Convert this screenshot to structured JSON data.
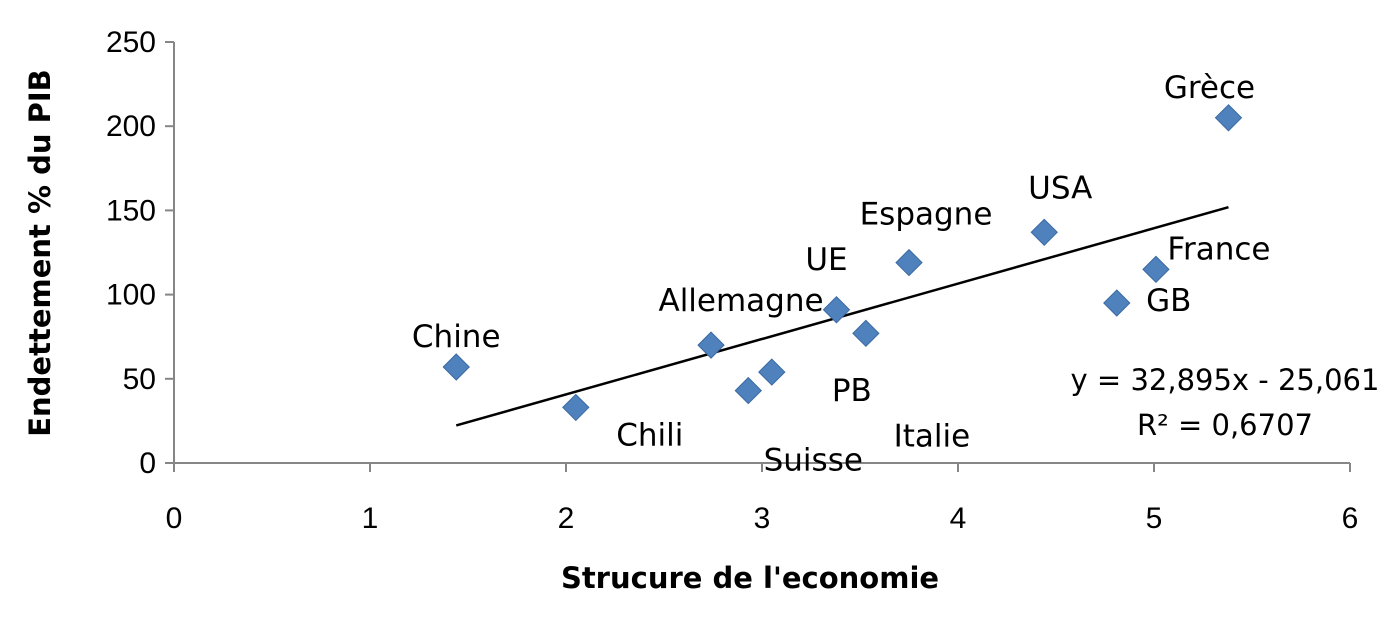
{
  "chart_data": {
    "type": "scatter",
    "xlabel": "Strucure de l'economie",
    "ylabel": "Endettement  % du PIB",
    "xlim": [
      0,
      6
    ],
    "ylim": [
      0,
      250
    ],
    "xticks": [
      "0",
      "1",
      "2",
      "3",
      "4",
      "5",
      "6"
    ],
    "yticks": [
      "0",
      "50",
      "100",
      "150",
      "200",
      "250"
    ],
    "grid": false,
    "marker_color": "#4f81bd",
    "points": [
      {
        "label": "Chine",
        "x": 1.44,
        "y": 57
      },
      {
        "label": "Chili",
        "x": 2.05,
        "y": 33
      },
      {
        "label": "Allemagne",
        "x": 2.74,
        "y": 70
      },
      {
        "label": "Suisse",
        "x": 2.93,
        "y": 43
      },
      {
        "label": "PB",
        "x": 3.05,
        "y": 54
      },
      {
        "label": "UE",
        "x": 3.38,
        "y": 91
      },
      {
        "label": "Italie",
        "x": 3.53,
        "y": 77
      },
      {
        "label": "Espagne",
        "x": 3.75,
        "y": 119
      },
      {
        "label": "USA",
        "x": 4.44,
        "y": 137
      },
      {
        "label": "GB",
        "x": 4.81,
        "y": 95
      },
      {
        "label": "France",
        "x": 5.01,
        "y": 115
      },
      {
        "label": "Grèce",
        "x": 5.38,
        "y": 205
      }
    ],
    "trendline": {
      "type": "linear",
      "slope": 32.895,
      "intercept": -25.061,
      "x_range": [
        1.44,
        5.38
      ],
      "equation": "y = 32,895x - 25,061",
      "r_squared": "R² = 0,6707"
    }
  }
}
